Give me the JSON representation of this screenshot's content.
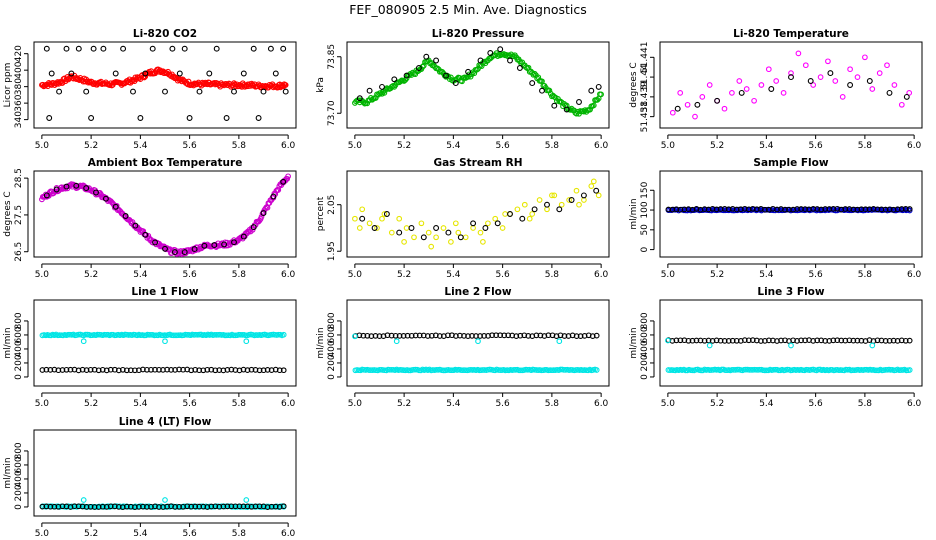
{
  "figure_title": "FEF_080905  2.5 Min. Ave. Diagnostics",
  "chart_data": [
    {
      "type": "scatter",
      "title": "Li-820 CO2",
      "ylabel": "Licor ppm",
      "xlim": [
        5.0,
        6.0
      ],
      "xticks": [
        5.0,
        5.2,
        5.4,
        5.6,
        5.8,
        6.0
      ],
      "xtick_labels": [
        "5.0",
        "5.2",
        "5.4",
        "5.6",
        "5.8",
        "6.0"
      ],
      "ylim": [
        334,
        430
      ],
      "yticks": [
        340,
        360,
        380,
        400,
        420
      ],
      "ytick_labels": [
        "340",
        "360",
        "380",
        "400",
        "420"
      ],
      "series": [
        {
          "name": "avg",
          "color": "#ff0000",
          "x": [
            5.0,
            5.04,
            5.08,
            5.12,
            5.16,
            5.2,
            5.24,
            5.28,
            5.32,
            5.36,
            5.4,
            5.44,
            5.48,
            5.52,
            5.56,
            5.6,
            5.64,
            5.68,
            5.72,
            5.76,
            5.8,
            5.84,
            5.88,
            5.92,
            5.96,
            5.99
          ],
          "y": [
            382,
            383,
            386,
            392,
            389,
            385,
            384,
            383,
            384,
            387,
            391,
            397,
            400,
            396,
            388,
            384,
            383,
            383,
            382,
            382,
            382,
            382,
            381,
            381,
            381,
            382
          ]
        },
        {
          "name": "raw",
          "color": "#000000",
          "x": [
            5.02,
            5.1,
            5.15,
            5.21,
            5.25,
            5.33,
            5.45,
            5.53,
            5.58,
            5.71,
            5.86,
            5.93,
            5.98,
            5.04,
            5.12,
            5.3,
            5.42,
            5.56,
            5.68,
            5.82,
            5.95,
            5.07,
            5.18,
            5.37,
            5.5,
            5.64,
            5.78,
            5.9,
            5.99,
            5.03,
            5.2,
            5.4,
            5.6,
            5.75,
            5.88
          ],
          "y": [
            426,
            426,
            426,
            426,
            426,
            426,
            426,
            426,
            426,
            426,
            426,
            426,
            426,
            396,
            396,
            396,
            396,
            396,
            396,
            396,
            396,
            374,
            374,
            374,
            374,
            374,
            374,
            374,
            374,
            342,
            342,
            342,
            342,
            342,
            342
          ]
        }
      ]
    },
    {
      "type": "scatter",
      "title": "Li-820 Pressure",
      "ylabel": "kPa",
      "xlim": [
        5.0,
        6.0
      ],
      "xticks": [
        5.0,
        5.2,
        5.4,
        5.6,
        5.8,
        6.0
      ],
      "xtick_labels": [
        "5.0",
        "5.2",
        "5.4",
        "5.6",
        "5.8",
        "6.0"
      ],
      "ylim": [
        73.67,
        73.88
      ],
      "yticks": [
        73.7,
        73.85
      ],
      "ytick_labels": [
        "73.70",
        "73.85"
      ],
      "series": [
        {
          "name": "avg",
          "color": "#00b400",
          "x": [
            5.0,
            5.05,
            5.1,
            5.15,
            5.2,
            5.25,
            5.3,
            5.35,
            5.4,
            5.45,
            5.5,
            5.55,
            5.6,
            5.65,
            5.7,
            5.75,
            5.8,
            5.85,
            5.9,
            5.95,
            6.0
          ],
          "y": [
            73.73,
            73.73,
            73.75,
            73.77,
            73.79,
            73.81,
            73.84,
            73.81,
            73.79,
            73.79,
            73.82,
            73.85,
            73.86,
            73.85,
            73.82,
            73.79,
            73.75,
            73.72,
            73.7,
            73.71,
            73.75
          ]
        },
        {
          "name": "raw",
          "color": "#000000",
          "x": [
            5.02,
            5.06,
            5.11,
            5.16,
            5.21,
            5.26,
            5.29,
            5.33,
            5.37,
            5.41,
            5.46,
            5.51,
            5.55,
            5.59,
            5.63,
            5.67,
            5.72,
            5.76,
            5.81,
            5.86,
            5.91,
            5.96,
            5.99
          ],
          "y": [
            73.74,
            73.76,
            73.77,
            73.79,
            73.8,
            73.82,
            73.85,
            73.84,
            73.8,
            73.78,
            73.81,
            73.84,
            73.86,
            73.87,
            73.84,
            73.82,
            73.78,
            73.76,
            73.72,
            73.71,
            73.73,
            73.76,
            73.77
          ]
        }
      ]
    },
    {
      "type": "scatter",
      "title": "Li-820 Temperature",
      "ylabel": "degrees C",
      "xlim": [
        5.0,
        6.0
      ],
      "xticks": [
        5.0,
        5.2,
        5.4,
        5.6,
        5.8,
        6.0
      ],
      "xtick_labels": [
        "5.0",
        "5.2",
        "5.4",
        "5.6",
        "5.8",
        "6.0"
      ],
      "ylim": [
        51.4376,
        51.4416
      ],
      "yticks": [
        51.438,
        51.439,
        51.44,
        51.441
      ],
      "ytick_labels": [
        "51.438",
        "51.439",
        "51.44",
        "51.441"
      ],
      "series": [
        {
          "name": "avg",
          "color": "#ff00ff",
          "x": [
            5.02,
            5.08,
            5.14,
            5.2,
            5.26,
            5.32,
            5.38,
            5.44,
            5.5,
            5.56,
            5.62,
            5.68,
            5.74,
            5.8,
            5.86,
            5.92,
            5.98,
            5.05,
            5.11,
            5.17,
            5.23,
            5.29,
            5.35,
            5.41,
            5.47,
            5.53,
            5.59,
            5.65,
            5.71,
            5.77,
            5.83,
            5.89,
            5.95
          ],
          "y": [
            51.4382,
            51.4386,
            51.439,
            51.4388,
            51.4392,
            51.4394,
            51.4396,
            51.4398,
            51.4402,
            51.4406,
            51.44,
            51.4398,
            51.4404,
            51.441,
            51.4402,
            51.4396,
            51.4392,
            51.4392,
            51.438,
            51.4396,
            51.4384,
            51.4398,
            51.4388,
            51.4404,
            51.4392,
            51.4412,
            51.4396,
            51.4408,
            51.439,
            51.44,
            51.4394,
            51.4406,
            51.4386
          ]
        },
        {
          "name": "raw",
          "color": "#000000",
          "x": [
            5.04,
            5.12,
            5.2,
            5.3,
            5.42,
            5.5,
            5.58,
            5.66,
            5.74,
            5.82,
            5.9,
            5.97
          ],
          "y": [
            51.4384,
            51.4386,
            51.4388,
            51.4392,
            51.4394,
            51.44,
            51.4398,
            51.4402,
            51.4396,
            51.4398,
            51.4392,
            51.439
          ]
        }
      ]
    },
    {
      "type": "scatter",
      "title": "Ambient Box Temperature",
      "ylabel": "degrees C",
      "xlim": [
        5.0,
        6.0
      ],
      "xticks": [
        5.0,
        5.2,
        5.4,
        5.6,
        5.8,
        6.0
      ],
      "xtick_labels": [
        "5.0",
        "5.2",
        "5.4",
        "5.6",
        "5.8",
        "6.0"
      ],
      "ylim": [
        26.45,
        28.6
      ],
      "yticks": [
        26.5,
        27.5,
        28.5
      ],
      "ytick_labels": [
        "26.5",
        "27.5",
        "28.5"
      ],
      "series": [
        {
          "name": "avg",
          "color": "#cc00cc",
          "x": [
            5.0,
            5.04,
            5.08,
            5.12,
            5.16,
            5.2,
            5.24,
            5.28,
            5.32,
            5.36,
            5.4,
            5.44,
            5.48,
            5.52,
            5.56,
            5.6,
            5.64,
            5.68,
            5.72,
            5.76,
            5.8,
            5.84,
            5.88,
            5.92,
            5.96,
            6.0
          ],
          "y": [
            27.95,
            28.12,
            28.24,
            28.29,
            28.27,
            28.18,
            28.03,
            27.84,
            27.6,
            27.34,
            27.08,
            26.84,
            26.66,
            26.52,
            26.47,
            26.52,
            26.62,
            26.68,
            26.68,
            26.72,
            26.82,
            27.02,
            27.34,
            27.78,
            28.22,
            28.55
          ]
        },
        {
          "name": "raw",
          "color": "#000000",
          "x": [
            5.02,
            5.06,
            5.1,
            5.14,
            5.18,
            5.22,
            5.26,
            5.3,
            5.34,
            5.38,
            5.42,
            5.46,
            5.5,
            5.54,
            5.58,
            5.62,
            5.66,
            5.7,
            5.74,
            5.78,
            5.82,
            5.86,
            5.9,
            5.94,
            5.98
          ],
          "y": [
            28.03,
            28.19,
            28.27,
            28.29,
            28.23,
            28.11,
            27.94,
            27.72,
            27.47,
            27.21,
            26.96,
            26.75,
            26.58,
            26.49,
            26.49,
            26.57,
            26.66,
            26.68,
            26.7,
            26.76,
            26.91,
            27.17,
            27.55,
            28.0,
            28.4
          ]
        }
      ]
    },
    {
      "type": "scatter",
      "title": "Gas Stream RH",
      "ylabel": "percent",
      "xlim": [
        5.0,
        6.0
      ],
      "xticks": [
        5.0,
        5.2,
        5.4,
        5.6,
        5.8,
        6.0
      ],
      "xtick_labels": [
        "5.0",
        "5.2",
        "5.4",
        "5.6",
        "5.8",
        "6.0"
      ],
      "ylim": [
        1.945,
        2.115
      ],
      "yticks": [
        1.95,
        2.05
      ],
      "ytick_labels": [
        "1.95",
        "2.05"
      ],
      "series": [
        {
          "name": "avg",
          "color": "#e6e600",
          "x": [
            5.0,
            5.03,
            5.06,
            5.09,
            5.12,
            5.15,
            5.18,
            5.21,
            5.24,
            5.27,
            5.3,
            5.33,
            5.36,
            5.39,
            5.42,
            5.45,
            5.48,
            5.51,
            5.54,
            5.57,
            5.6,
            5.63,
            5.66,
            5.69,
            5.72,
            5.75,
            5.78,
            5.81,
            5.84,
            5.87,
            5.9,
            5.93,
            5.96,
            5.99,
            5.02,
            5.11,
            5.2,
            5.31,
            5.41,
            5.52,
            5.61,
            5.71,
            5.8,
            5.91,
            5.97
          ],
          "y": [
            2.02,
            2.04,
            2.01,
            2.0,
            2.03,
            1.99,
            2.02,
            2.0,
            1.98,
            2.01,
            1.99,
            1.98,
            2.0,
            1.97,
            1.99,
            1.98,
            2.0,
            1.99,
            2.01,
            2.02,
            2.0,
            2.03,
            2.04,
            2.05,
            2.03,
            2.06,
            2.04,
            2.07,
            2.05,
            2.06,
            2.08,
            2.06,
            2.09,
            2.07,
            2.0,
            2.02,
            1.97,
            1.96,
            2.01,
            1.97,
            2.03,
            2.02,
            2.07,
            2.05,
            2.1
          ]
        },
        {
          "name": "raw",
          "color": "#000000",
          "x": [
            5.03,
            5.08,
            5.13,
            5.18,
            5.23,
            5.28,
            5.33,
            5.38,
            5.43,
            5.48,
            5.53,
            5.58,
            5.63,
            5.68,
            5.73,
            5.78,
            5.83,
            5.88,
            5.93,
            5.98
          ],
          "y": [
            2.02,
            2.0,
            2.03,
            1.99,
            2.0,
            1.98,
            2.0,
            1.99,
            1.98,
            2.01,
            2.0,
            2.01,
            2.03,
            2.02,
            2.04,
            2.05,
            2.04,
            2.06,
            2.07,
            2.08
          ]
        }
      ]
    },
    {
      "type": "scatter",
      "title": "Sample Flow",
      "ylabel": "ml/min",
      "xlim": [
        5.0,
        6.0
      ],
      "xticks": [
        5.0,
        5.2,
        5.4,
        5.6,
        5.8,
        6.0
      ],
      "xtick_labels": [
        "5.0",
        "5.2",
        "5.4",
        "5.6",
        "5.8",
        "6.0"
      ],
      "ylim": [
        -10,
        190
      ],
      "yticks": [
        0,
        50,
        100,
        150
      ],
      "ytick_labels": [
        "0",
        "50",
        "100",
        "150"
      ],
      "series": [
        {
          "name": "avg",
          "color": "#0000cc",
          "const": 100
        },
        {
          "name": "raw",
          "color": "#000000",
          "const": 102
        }
      ]
    },
    {
      "type": "scatter",
      "title": "Line 1 Flow",
      "ylabel": "ml/min",
      "xlim": [
        5.0,
        6.0
      ],
      "xticks": [
        5.0,
        5.2,
        5.4,
        5.6,
        5.8,
        6.0
      ],
      "xtick_labels": [
        "5.0",
        "5.2",
        "5.4",
        "5.6",
        "5.8",
        "6.0"
      ],
      "ylim": [
        -80,
        1050
      ],
      "yticks": [
        0,
        200,
        400,
        600,
        800
      ],
      "ytick_labels": [
        "0",
        "200",
        "400",
        "600",
        "800"
      ],
      "series": [
        {
          "name": "avg",
          "color": "#00e5e5",
          "const": 600,
          "dips": [
            {
              "x": 5.17,
              "y": 510
            },
            {
              "x": 5.5,
              "y": 510
            },
            {
              "x": 5.83,
              "y": 510
            }
          ]
        },
        {
          "name": "raw",
          "color": "#000000",
          "const": 100
        }
      ]
    },
    {
      "type": "scatter",
      "title": "Line 2 Flow",
      "ylabel": "ml/min",
      "xlim": [
        5.0,
        6.0
      ],
      "xticks": [
        5.0,
        5.2,
        5.4,
        5.6,
        5.8,
        6.0
      ],
      "xtick_labels": [
        "5.0",
        "5.2",
        "5.4",
        "5.6",
        "5.8",
        "6.0"
      ],
      "ylim": [
        -80,
        1050
      ],
      "yticks": [
        0,
        200,
        400,
        600,
        800
      ],
      "ytick_labels": [
        "0",
        "200",
        "400",
        "600",
        "800"
      ],
      "series": [
        {
          "name": "raw",
          "color": "#000000",
          "const": 590
        },
        {
          "name": "avg",
          "color": "#00e5e5",
          "const": 100,
          "dips": [
            {
              "x": 5.0,
              "y": 580
            },
            {
              "x": 5.17,
              "y": 510
            },
            {
              "x": 5.5,
              "y": 510
            },
            {
              "x": 5.83,
              "y": 510
            }
          ]
        }
      ]
    },
    {
      "type": "scatter",
      "title": "Line 3 Flow",
      "ylabel": "ml/min",
      "xlim": [
        5.0,
        6.0
      ],
      "xticks": [
        5.0,
        5.2,
        5.4,
        5.6,
        5.8,
        6.0
      ],
      "xtick_labels": [
        "5.0",
        "5.2",
        "5.4",
        "5.6",
        "5.8",
        "6.0"
      ],
      "ylim": [
        -80,
        1050
      ],
      "yticks": [
        0,
        200,
        400,
        600,
        800
      ],
      "ytick_labels": [
        "0",
        "200",
        "400",
        "600",
        "800"
      ],
      "series": [
        {
          "name": "raw",
          "color": "#000000",
          "const": 520
        },
        {
          "name": "avg",
          "color": "#00e5e5",
          "const": 100,
          "dips": [
            {
              "x": 5.0,
              "y": 520
            },
            {
              "x": 5.17,
              "y": 450
            },
            {
              "x": 5.5,
              "y": 450
            },
            {
              "x": 5.83,
              "y": 450
            }
          ]
        }
      ]
    },
    {
      "type": "scatter",
      "title": "Line 4 (LT) Flow",
      "ylabel": "ml/min",
      "xlim": [
        5.0,
        6.0
      ],
      "xticks": [
        5.0,
        5.2,
        5.4,
        5.6,
        5.8,
        6.0
      ],
      "xtick_labels": [
        "5.0",
        "5.2",
        "5.4",
        "5.6",
        "5.8",
        "6.0"
      ],
      "ylim": [
        -80,
        1050
      ],
      "yticks": [
        0,
        200,
        400,
        600,
        800
      ],
      "ytick_labels": [
        "0",
        "200",
        "400",
        "600",
        "800"
      ],
      "series": [
        {
          "name": "avg",
          "color": "#00e5e5",
          "const": 5,
          "dips": [
            {
              "x": 5.17,
              "y": 100
            },
            {
              "x": 5.5,
              "y": 100
            },
            {
              "x": 5.83,
              "y": 100
            }
          ]
        },
        {
          "name": "raw",
          "color": "#000000",
          "const": 5
        }
      ]
    }
  ]
}
